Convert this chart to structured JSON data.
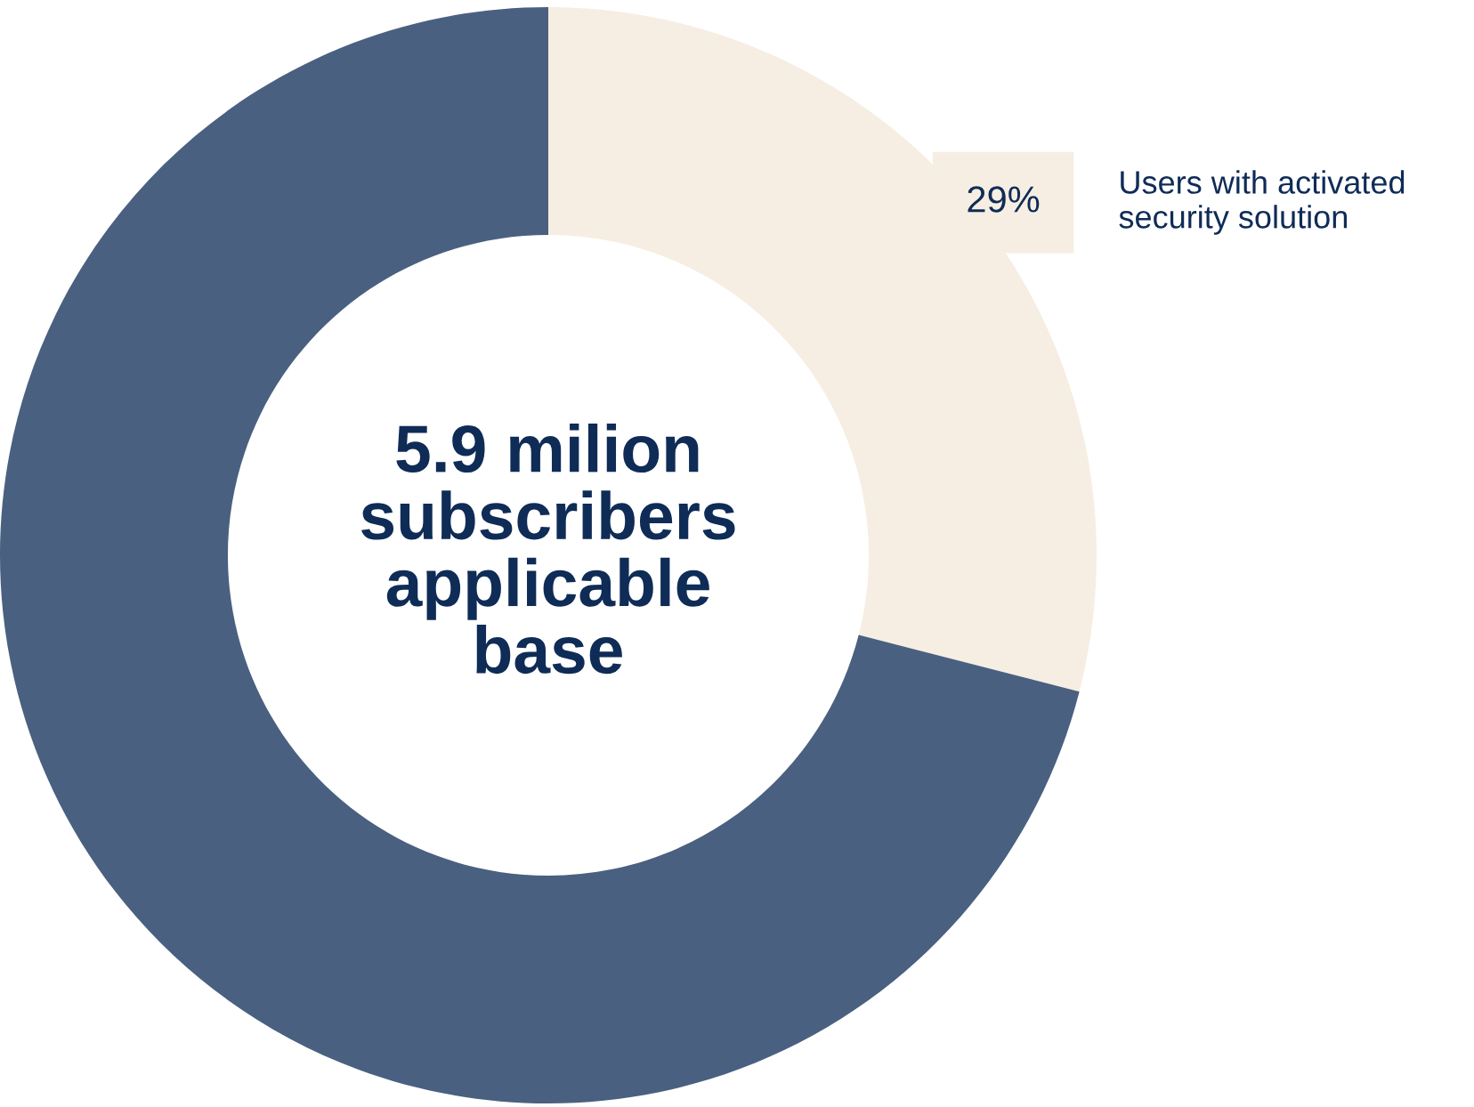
{
  "chart_data": {
    "type": "donut",
    "categories": [
      "Users with activated security solution",
      null
    ],
    "values": [
      29,
      71
    ],
    "colors": [
      "#f6eee2",
      "#4a6080"
    ],
    "value_labels": [
      "29%",
      null
    ],
    "annotations": [
      "5.9 milion\nsubscribers\napplicable\nbase"
    ],
    "legend": false
  }
}
